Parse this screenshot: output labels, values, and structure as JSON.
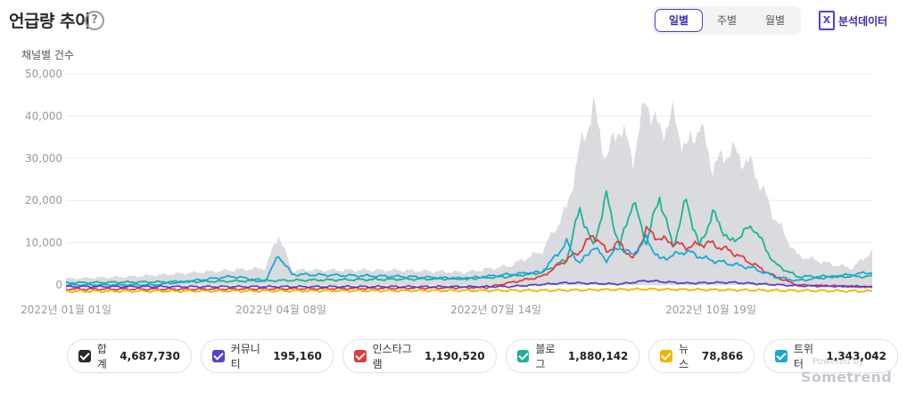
{
  "header": {
    "title": "언급량 추이",
    "help_icon": "?"
  },
  "period_tabs": [
    {
      "label": "일별",
      "active": true
    },
    {
      "label": "주별",
      "active": false
    },
    {
      "label": "월별",
      "active": false
    }
  ],
  "export": {
    "label": "분석데이터",
    "icon": "excel-icon"
  },
  "chart_data": {
    "type": "area",
    "title": "언급량 추이",
    "ylabel": "채널별 건수",
    "ylim": [
      0,
      50000
    ],
    "yticks": [
      "50,000",
      "40,000",
      "30,000",
      "20,000",
      "10,000",
      "0"
    ],
    "xticks": [
      "2022년 01월 01일",
      "2022년 04월 08일",
      "2022년 07월 14일",
      "2022년 10월 19일"
    ],
    "x_range": [
      "2022-01-01",
      "2022-12-31"
    ],
    "series": [
      {
        "name": "합계",
        "color": "#d7d9dc",
        "style": "area",
        "anchors": [
          [
            0,
            1500
          ],
          [
            30,
            2000
          ],
          [
            60,
            3000
          ],
          [
            90,
            4000
          ],
          [
            96,
            12000
          ],
          [
            102,
            3500
          ],
          [
            150,
            3500
          ],
          [
            180,
            3000
          ],
          [
            200,
            4500
          ],
          [
            215,
            8000
          ],
          [
            226,
            18000
          ],
          [
            232,
            32000
          ],
          [
            238,
            42000
          ],
          [
            244,
            30000
          ],
          [
            250,
            38000
          ],
          [
            256,
            30000
          ],
          [
            262,
            44000
          ],
          [
            268,
            36000
          ],
          [
            274,
            40000
          ],
          [
            280,
            32000
          ],
          [
            286,
            38000
          ],
          [
            292,
            28000
          ],
          [
            300,
            32000
          ],
          [
            310,
            28000
          ],
          [
            320,
            16000
          ],
          [
            330,
            7000
          ],
          [
            345,
            5000
          ],
          [
            355,
            4000
          ],
          [
            364,
            8000
          ]
        ]
      },
      {
        "name": "블로그",
        "color": "#1ab394",
        "style": "line",
        "anchors": [
          [
            0,
            500
          ],
          [
            60,
            800
          ],
          [
            120,
            1200
          ],
          [
            180,
            1500
          ],
          [
            200,
            2000
          ],
          [
            215,
            3000
          ],
          [
            226,
            6000
          ],
          [
            232,
            18000
          ],
          [
            238,
            9000
          ],
          [
            244,
            21000
          ],
          [
            250,
            9000
          ],
          [
            256,
            20000
          ],
          [
            262,
            10000
          ],
          [
            268,
            21000
          ],
          [
            274,
            9000
          ],
          [
            280,
            20000
          ],
          [
            286,
            9000
          ],
          [
            292,
            17000
          ],
          [
            300,
            10000
          ],
          [
            310,
            14000
          ],
          [
            320,
            5000
          ],
          [
            330,
            2000
          ],
          [
            364,
            2000
          ]
        ]
      },
      {
        "name": "인스타그램",
        "color": "#e03c3c",
        "style": "line",
        "anchors": [
          [
            0,
            -1000
          ],
          [
            60,
            -1000
          ],
          [
            150,
            -800
          ],
          [
            190,
            -600
          ],
          [
            200,
            500
          ],
          [
            215,
            2000
          ],
          [
            226,
            6000
          ],
          [
            232,
            8000
          ],
          [
            238,
            12000
          ],
          [
            244,
            8000
          ],
          [
            250,
            10000
          ],
          [
            256,
            6000
          ],
          [
            262,
            13000
          ],
          [
            268,
            11000
          ],
          [
            280,
            9000
          ],
          [
            290,
            10000
          ],
          [
            300,
            8000
          ],
          [
            310,
            5000
          ],
          [
            320,
            2000
          ],
          [
            330,
            0
          ],
          [
            364,
            -500
          ]
        ]
      },
      {
        "name": "트위터",
        "color": "#1aa7d8",
        "style": "line",
        "anchors": [
          [
            0,
            0
          ],
          [
            40,
            0
          ],
          [
            75,
            2000
          ],
          [
            90,
            1000
          ],
          [
            96,
            7000
          ],
          [
            102,
            2500
          ],
          [
            150,
            2000
          ],
          [
            180,
            1500
          ],
          [
            200,
            2500
          ],
          [
            215,
            3000
          ],
          [
            226,
            10000
          ],
          [
            232,
            5000
          ],
          [
            238,
            9000
          ],
          [
            244,
            6000
          ],
          [
            250,
            9000
          ],
          [
            256,
            7000
          ],
          [
            262,
            11000
          ],
          [
            268,
            6000
          ],
          [
            280,
            8000
          ],
          [
            290,
            6000
          ],
          [
            300,
            5000
          ],
          [
            310,
            4000
          ],
          [
            320,
            2000
          ],
          [
            330,
            1000
          ],
          [
            364,
            3000
          ]
        ]
      },
      {
        "name": "커뮤니티",
        "color": "#5b3fd0",
        "style": "line",
        "anchors": [
          [
            0,
            -400
          ],
          [
            200,
            -400
          ],
          [
            226,
            500
          ],
          [
            250,
            200
          ],
          [
            262,
            1000
          ],
          [
            280,
            400
          ],
          [
            300,
            600
          ],
          [
            330,
            -200
          ],
          [
            364,
            -400
          ]
        ]
      },
      {
        "name": "뉴스",
        "color": "#f0b400",
        "style": "line",
        "anchors": [
          [
            0,
            -1500
          ],
          [
            220,
            -1300
          ],
          [
            260,
            -1000
          ],
          [
            300,
            -1200
          ],
          [
            364,
            -1500
          ]
        ]
      }
    ]
  },
  "legend": [
    {
      "name": "합계",
      "value": "4,687,730",
      "color": "#2b2b2b"
    },
    {
      "name": "커뮤니티",
      "value": "195,160",
      "color": "#5b3fd0"
    },
    {
      "name": "인스타그램",
      "value": "1,190,520",
      "color": "#e03c3c"
    },
    {
      "name": "블로그",
      "value": "1,880,142",
      "color": "#1ab394"
    },
    {
      "name": "뉴스",
      "value": "78,866",
      "color": "#f0b400"
    },
    {
      "name": "트위터",
      "value": "1,343,042",
      "color": "#1aa7d8"
    }
  ],
  "watermark": {
    "powered": "Powered by",
    "brand": "Sometrend"
  }
}
